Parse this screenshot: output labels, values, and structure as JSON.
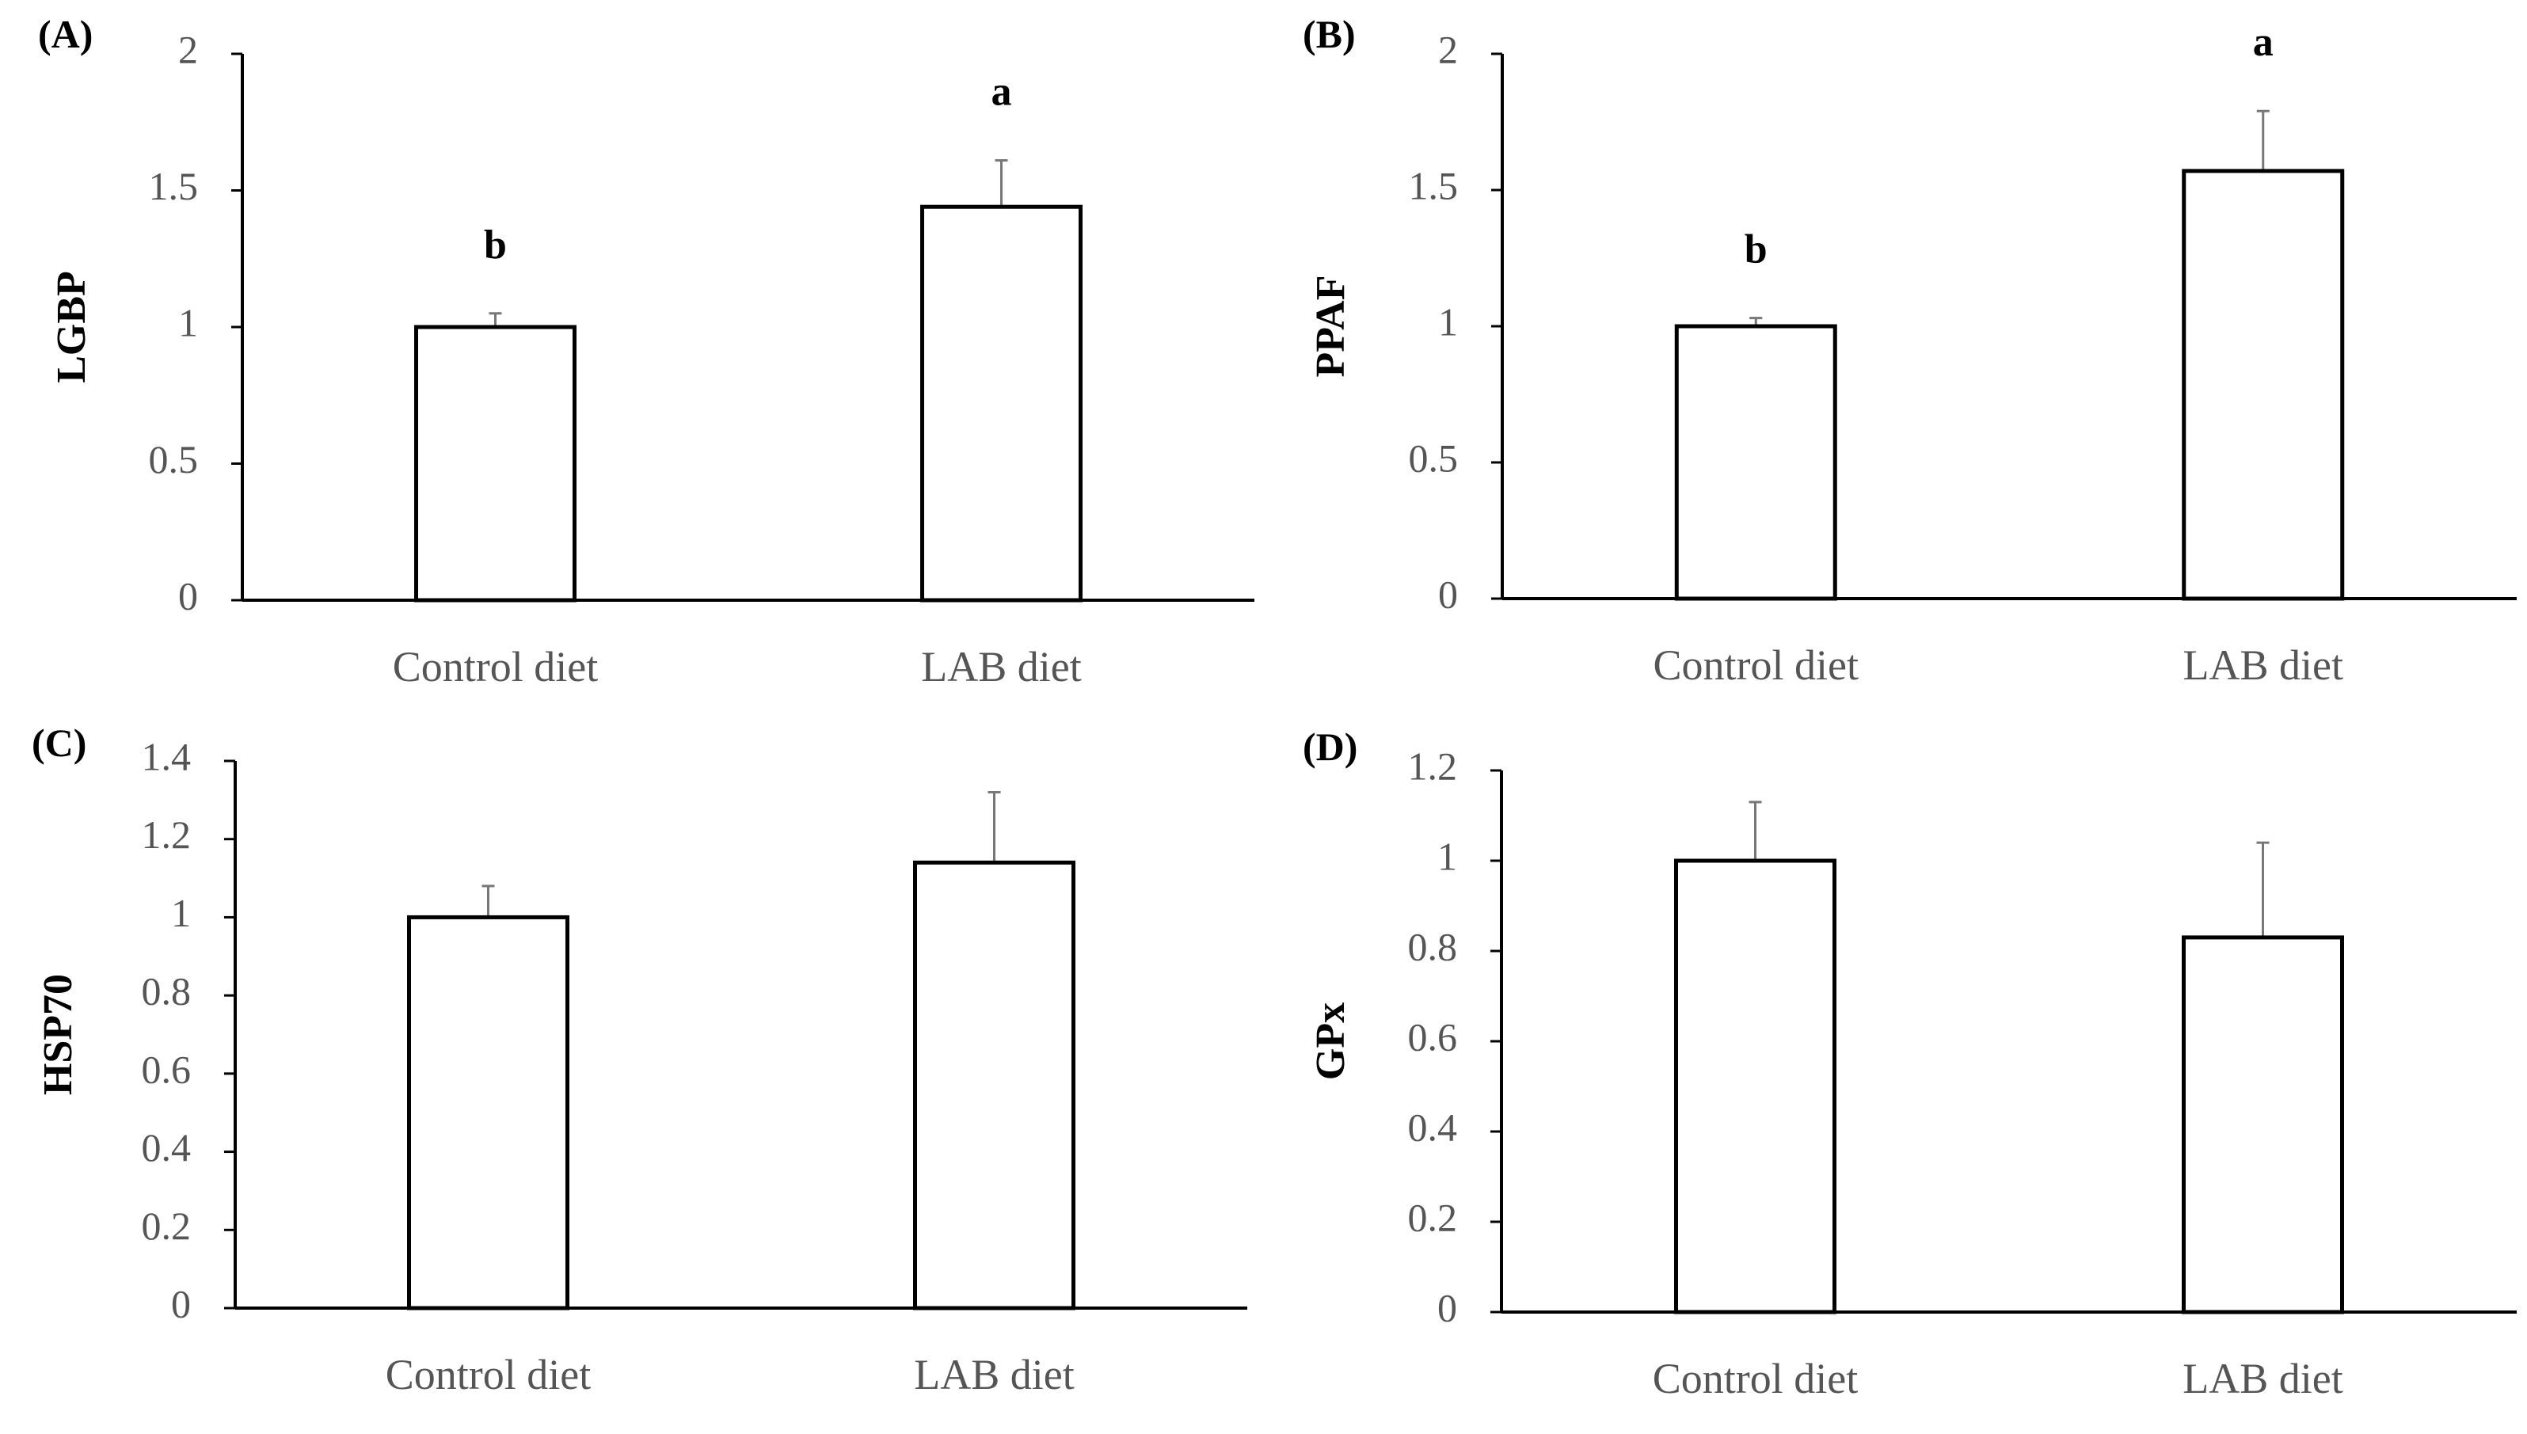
{
  "chart_data": [
    {
      "panel": "(A)",
      "type": "bar",
      "categories": [
        "Control diet",
        "LAB diet"
      ],
      "values": [
        1.0,
        1.44
      ],
      "errors": [
        0.05,
        0.17
      ],
      "significance": [
        "b",
        "a"
      ],
      "ylabel": "LGBP",
      "xlabel": "",
      "ylim": [
        0,
        2
      ],
      "yticks": [
        0,
        0.5,
        1,
        1.5,
        2
      ],
      "ytick_labels": [
        "0",
        "0.5",
        "1",
        "1.5",
        "2"
      ]
    },
    {
      "panel": "(B)",
      "type": "bar",
      "categories": [
        "Control diet",
        "LAB diet"
      ],
      "values": [
        1.0,
        1.57
      ],
      "errors": [
        0.03,
        0.22
      ],
      "significance": [
        "b",
        "a"
      ],
      "ylabel": "PPAF",
      "xlabel": "",
      "ylim": [
        0,
        2
      ],
      "yticks": [
        0,
        0.5,
        1,
        1.5,
        2
      ],
      "ytick_labels": [
        "0",
        "0.5",
        "1",
        "1.5",
        "2"
      ]
    },
    {
      "panel": "(C)",
      "type": "bar",
      "categories": [
        "Control diet",
        "LAB diet"
      ],
      "values": [
        1.0,
        1.14
      ],
      "errors": [
        0.08,
        0.18
      ],
      "significance": [
        "",
        ""
      ],
      "ylabel": "HSP70",
      "xlabel": "",
      "ylim": [
        0,
        1.4
      ],
      "yticks": [
        0,
        0.2,
        0.4,
        0.6,
        0.8,
        1,
        1.2,
        1.4
      ],
      "ytick_labels": [
        "0",
        "0.2",
        "0.4",
        "0.6",
        "0.8",
        "1",
        "1.2",
        "1.4"
      ]
    },
    {
      "panel": "(D)",
      "type": "bar",
      "categories": [
        "Control diet",
        "LAB diet"
      ],
      "values": [
        1.0,
        0.83
      ],
      "errors": [
        0.13,
        0.21
      ],
      "significance": [
        "",
        ""
      ],
      "ylabel": "GPx",
      "xlabel": "",
      "ylim": [
        0,
        1.2
      ],
      "yticks": [
        0,
        0.2,
        0.4,
        0.6,
        0.8,
        1,
        1.2
      ],
      "ytick_labels": [
        "0",
        "0.2",
        "0.4",
        "0.6",
        "0.8",
        "1",
        "1.2"
      ]
    }
  ]
}
